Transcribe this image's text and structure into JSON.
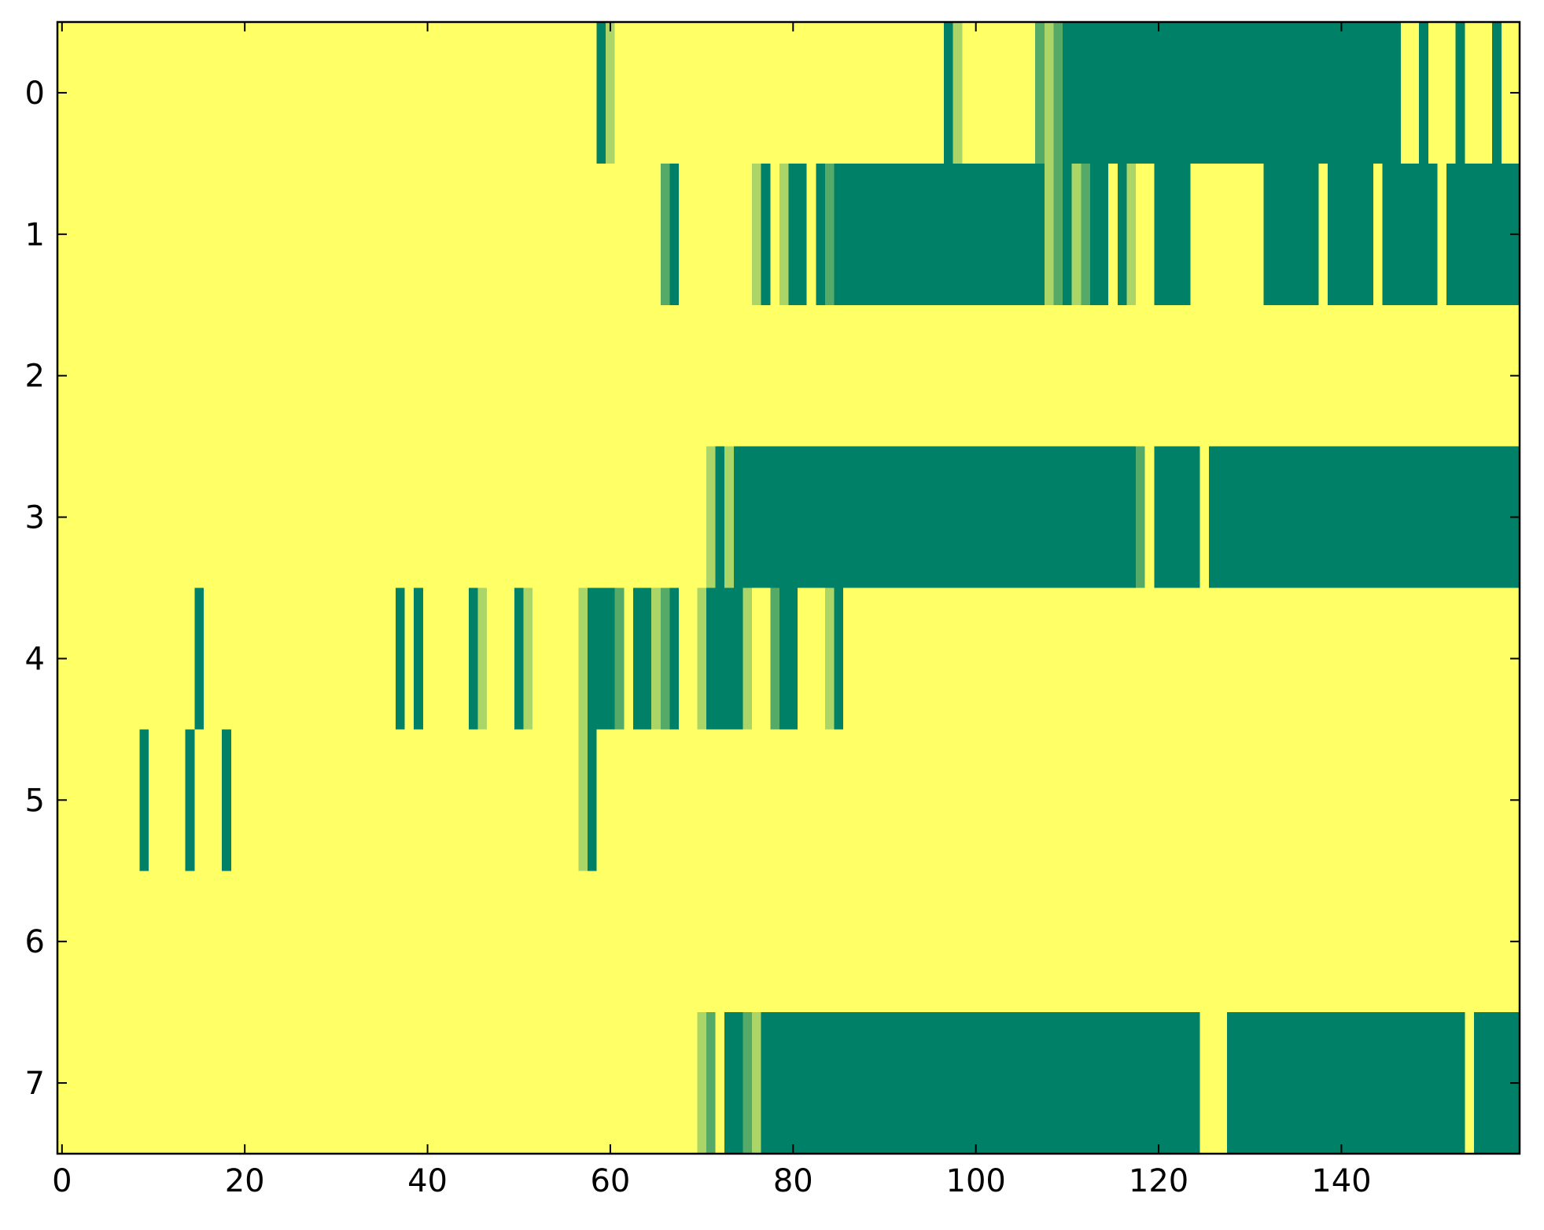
{
  "chart_data": {
    "type": "heatmap",
    "colormap": "summer_r",
    "clim": [
      0,
      1
    ],
    "xlim": [
      -0.5,
      159.5
    ],
    "ylim": [
      7.5,
      -0.5
    ],
    "xticks": [
      0,
      20,
      40,
      60,
      80,
      100,
      120,
      140
    ],
    "yticks": [
      0,
      1,
      2,
      3,
      4,
      5,
      6,
      7
    ],
    "z": [
      [
        0,
        0,
        0,
        0,
        0,
        0,
        0,
        0,
        0,
        0,
        0,
        0,
        0,
        0,
        0,
        0,
        0,
        0,
        0,
        0,
        0,
        0,
        0,
        0,
        0,
        0,
        0,
        0,
        0,
        0,
        0,
        0,
        0,
        0,
        0,
        0,
        0,
        0,
        0,
        0,
        0,
        0,
        0,
        0,
        0,
        0,
        0,
        0,
        0,
        0,
        0,
        0,
        0,
        0,
        0,
        0,
        0,
        0,
        0,
        1,
        0.33,
        0,
        0,
        0,
        0,
        0,
        0,
        0,
        0,
        0,
        0,
        0,
        0,
        0,
        0,
        0,
        0,
        0,
        0,
        0,
        0,
        0,
        0,
        0,
        0,
        0,
        0,
        0,
        0,
        0,
        0,
        0,
        0,
        0,
        0,
        0,
        0,
        1,
        0.33,
        0,
        0,
        0,
        0,
        0,
        0,
        0,
        0,
        0.67,
        0.33,
        0.67,
        1,
        1,
        1,
        1,
        1,
        1,
        1,
        1,
        1,
        1,
        1,
        1,
        1,
        1,
        1,
        1,
        1,
        1,
        1,
        1,
        1,
        1,
        1,
        1,
        1,
        1,
        1,
        1,
        1,
        1,
        1,
        1,
        1,
        1,
        1,
        1,
        1,
        0,
        0,
        1,
        0,
        0,
        0,
        1,
        0,
        0,
        0,
        1,
        0,
        0
      ],
      [
        0,
        0,
        0,
        0,
        0,
        0,
        0,
        0,
        0,
        0,
        0,
        0,
        0,
        0,
        0,
        0,
        0,
        0,
        0,
        0,
        0,
        0,
        0,
        0,
        0,
        0,
        0,
        0,
        0,
        0,
        0,
        0,
        0,
        0,
        0,
        0,
        0,
        0,
        0,
        0,
        0,
        0,
        0,
        0,
        0,
        0,
        0,
        0,
        0,
        0,
        0,
        0,
        0,
        0,
        0,
        0,
        0,
        0,
        0,
        0,
        0,
        0,
        0,
        0,
        0,
        0,
        0.67,
        1,
        0,
        0,
        0,
        0,
        0,
        0,
        0,
        0,
        0.33,
        1,
        0,
        0.33,
        1,
        1,
        0,
        1,
        0.67,
        1,
        1,
        1,
        1,
        1,
        1,
        1,
        1,
        1,
        1,
        1,
        1,
        1,
        1,
        1,
        1,
        1,
        1,
        1,
        1,
        1,
        1,
        1,
        0.33,
        0.67,
        1,
        0.33,
        0.67,
        1,
        1,
        0,
        1,
        0.33,
        0,
        0,
        1,
        1,
        1,
        1,
        0,
        0,
        0,
        0,
        0,
        0,
        0,
        0,
        1,
        1,
        1,
        1,
        1,
        1,
        0,
        1,
        1,
        1,
        1,
        1,
        0,
        1,
        1,
        1,
        1,
        1,
        1,
        0,
        1,
        1,
        1,
        1,
        1,
        1,
        1,
        1
      ],
      [
        0,
        0,
        0,
        0,
        0,
        0,
        0,
        0,
        0,
        0,
        0,
        0,
        0,
        0,
        0,
        0,
        0,
        0,
        0,
        0,
        0,
        0,
        0,
        0,
        0,
        0,
        0,
        0,
        0,
        0,
        0,
        0,
        0,
        0,
        0,
        0,
        0,
        0,
        0,
        0,
        0,
        0,
        0,
        0,
        0,
        0,
        0,
        0,
        0,
        0,
        0,
        0,
        0,
        0,
        0,
        0,
        0,
        0,
        0,
        0,
        0,
        0,
        0,
        0,
        0,
        0,
        0,
        0,
        0,
        0,
        0,
        0,
        0,
        0,
        0,
        0,
        0,
        0,
        0,
        0,
        0,
        0,
        0,
        0,
        0,
        0,
        0,
        0,
        0,
        0,
        0,
        0,
        0,
        0,
        0,
        0,
        0,
        0,
        0,
        0,
        0,
        0,
        0,
        0,
        0,
        0,
        0,
        0,
        0,
        0,
        0,
        0,
        0,
        0,
        0,
        0,
        0,
        0,
        0,
        0,
        0,
        0,
        0,
        0,
        0,
        0,
        0,
        0,
        0,
        0,
        0,
        0,
        0,
        0,
        0,
        0,
        0,
        0,
        0,
        0,
        0,
        0,
        0,
        0,
        0,
        0,
        0,
        0,
        0,
        0,
        0,
        0,
        0,
        0,
        0,
        0,
        0,
        0,
        0,
        0
      ],
      [
        0,
        0,
        0,
        0,
        0,
        0,
        0,
        0,
        0,
        0,
        0,
        0,
        0,
        0,
        0,
        0,
        0,
        0,
        0,
        0,
        0,
        0,
        0,
        0,
        0,
        0,
        0,
        0,
        0,
        0,
        0,
        0,
        0,
        0,
        0,
        0,
        0,
        0,
        0,
        0,
        0,
        0,
        0,
        0,
        0,
        0,
        0,
        0,
        0,
        0,
        0,
        0,
        0,
        0,
        0,
        0,
        0,
        0,
        0,
        0,
        0,
        0,
        0,
        0,
        0,
        0,
        0,
        0,
        0,
        0,
        0,
        0.33,
        1,
        0.33,
        1,
        1,
        1,
        1,
        1,
        1,
        1,
        1,
        1,
        1,
        1,
        1,
        1,
        1,
        1,
        1,
        1,
        1,
        1,
        1,
        1,
        1,
        1,
        1,
        1,
        1,
        1,
        1,
        1,
        1,
        1,
        1,
        1,
        1,
        1,
        1,
        1,
        1,
        1,
        1,
        1,
        1,
        1,
        1,
        0.67,
        0,
        1,
        1,
        1,
        1,
        1,
        0,
        1,
        1,
        1,
        1,
        1,
        1,
        1,
        1,
        1,
        1,
        1,
        1,
        1,
        1,
        1,
        1,
        1,
        1,
        1,
        1,
        1,
        1,
        1,
        1,
        1,
        1,
        1,
        1,
        1,
        1,
        1,
        1,
        1,
        1
      ],
      [
        0,
        0,
        0,
        0,
        0,
        0,
        0,
        0,
        0,
        0,
        0,
        0,
        0,
        0,
        0,
        1,
        0,
        0,
        0,
        0,
        0,
        0,
        0,
        0,
        0,
        0,
        0,
        0,
        0,
        0,
        0,
        0,
        0,
        0,
        0,
        0,
        0,
        1,
        0,
        1,
        0,
        0,
        0,
        0,
        0,
        1,
        0.33,
        0,
        0,
        0,
        1,
        0.33,
        0,
        0,
        0,
        0,
        0,
        0.33,
        1,
        1,
        1,
        0.67,
        0,
        1,
        1,
        0.33,
        0.67,
        1,
        0,
        0,
        0.33,
        1,
        1,
        1,
        1,
        0.33,
        0,
        0,
        0.67,
        1,
        1,
        0,
        0,
        0,
        0.33,
        1,
        0,
        0,
        0,
        0,
        0,
        0,
        0,
        0,
        0,
        0,
        0,
        0,
        0,
        0,
        0,
        0,
        0,
        0,
        0,
        0,
        0,
        0,
        0,
        0,
        0,
        0,
        0,
        0,
        0,
        0,
        0,
        0,
        0,
        0,
        0,
        0,
        0,
        0,
        0,
        0,
        0,
        0,
        0,
        0,
        0,
        0,
        0,
        0,
        0,
        0,
        0,
        0,
        0,
        0,
        0,
        0,
        0,
        0,
        0,
        0,
        0,
        0,
        0,
        0,
        0,
        0,
        0,
        0,
        0,
        0,
        0,
        0,
        0,
        0
      ],
      [
        0,
        0,
        0,
        0,
        0,
        0,
        0,
        0,
        0,
        1,
        0,
        0,
        0,
        0,
        1,
        0,
        0,
        0,
        1,
        0,
        0,
        0,
        0,
        0,
        0,
        0,
        0,
        0,
        0,
        0,
        0,
        0,
        0,
        0,
        0,
        0,
        0,
        0,
        0,
        0,
        0,
        0,
        0,
        0,
        0,
        0,
        0,
        0,
        0,
        0,
        0,
        0,
        0,
        0,
        0,
        0,
        0,
        0.33,
        1,
        0,
        0,
        0,
        0,
        0,
        0,
        0,
        0,
        0,
        0,
        0,
        0,
        0,
        0,
        0,
        0,
        0,
        0,
        0,
        0,
        0,
        0,
        0,
        0,
        0,
        0,
        0,
        0,
        0,
        0,
        0,
        0,
        0,
        0,
        0,
        0,
        0,
        0,
        0,
        0,
        0,
        0,
        0,
        0,
        0,
        0,
        0,
        0,
        0,
        0,
        0,
        0,
        0,
        0,
        0,
        0,
        0,
        0,
        0,
        0,
        0,
        0,
        0,
        0,
        0,
        0,
        0,
        0,
        0,
        0,
        0,
        0,
        0,
        0,
        0,
        0,
        0,
        0,
        0,
        0,
        0,
        0,
        0,
        0,
        0,
        0,
        0,
        0,
        0,
        0,
        0,
        0,
        0,
        0,
        0,
        0,
        0,
        0,
        0,
        0,
        0
      ],
      [
        0,
        0,
        0,
        0,
        0,
        0,
        0,
        0,
        0,
        0,
        0,
        0,
        0,
        0,
        0,
        0,
        0,
        0,
        0,
        0,
        0,
        0,
        0,
        0,
        0,
        0,
        0,
        0,
        0,
        0,
        0,
        0,
        0,
        0,
        0,
        0,
        0,
        0,
        0,
        0,
        0,
        0,
        0,
        0,
        0,
        0,
        0,
        0,
        0,
        0,
        0,
        0,
        0,
        0,
        0,
        0,
        0,
        0,
        0,
        0,
        0,
        0,
        0,
        0,
        0,
        0,
        0,
        0,
        0,
        0,
        0,
        0,
        0,
        0,
        0,
        0,
        0,
        0,
        0,
        0,
        0,
        0,
        0,
        0,
        0,
        0,
        0,
        0,
        0,
        0,
        0,
        0,
        0,
        0,
        0,
        0,
        0,
        0,
        0,
        0,
        0,
        0,
        0,
        0,
        0,
        0,
        0,
        0,
        0,
        0,
        0,
        0,
        0,
        0,
        0,
        0,
        0,
        0,
        0,
        0,
        0,
        0,
        0,
        0,
        0,
        0,
        0,
        0,
        0,
        0,
        0,
        0,
        0,
        0,
        0,
        0,
        0,
        0,
        0,
        0,
        0,
        0,
        0,
        0,
        0,
        0,
        0,
        0,
        0,
        0,
        0,
        0,
        0,
        0,
        0,
        0,
        0,
        0,
        0,
        0
      ],
      [
        0,
        0,
        0,
        0,
        0,
        0,
        0,
        0,
        0,
        0,
        0,
        0,
        0,
        0,
        0,
        0,
        0,
        0,
        0,
        0,
        0,
        0,
        0,
        0,
        0,
        0,
        0,
        0,
        0,
        0,
        0,
        0,
        0,
        0,
        0,
        0,
        0,
        0,
        0,
        0,
        0,
        0,
        0,
        0,
        0,
        0,
        0,
        0,
        0,
        0,
        0,
        0,
        0,
        0,
        0,
        0,
        0,
        0,
        0,
        0,
        0,
        0,
        0,
        0,
        0,
        0,
        0,
        0,
        0,
        0,
        0.33,
        0.67,
        0,
        1,
        1,
        0.67,
        0.33,
        1,
        1,
        1,
        1,
        1,
        1,
        1,
        1,
        1,
        1,
        1,
        1,
        1,
        1,
        1,
        1,
        1,
        1,
        1,
        1,
        1,
        1,
        1,
        1,
        1,
        1,
        1,
        1,
        1,
        1,
        1,
        1,
        1,
        1,
        1,
        1,
        1,
        1,
        1,
        1,
        1,
        1,
        1,
        1,
        1,
        1,
        1,
        1,
        0,
        0,
        0,
        1,
        1,
        1,
        1,
        1,
        1,
        1,
        1,
        1,
        1,
        1,
        1,
        1,
        1,
        1,
        1,
        1,
        1,
        1,
        1,
        1,
        1,
        1,
        1,
        1,
        1,
        0,
        1,
        1,
        1,
        1,
        1
      ]
    ]
  }
}
